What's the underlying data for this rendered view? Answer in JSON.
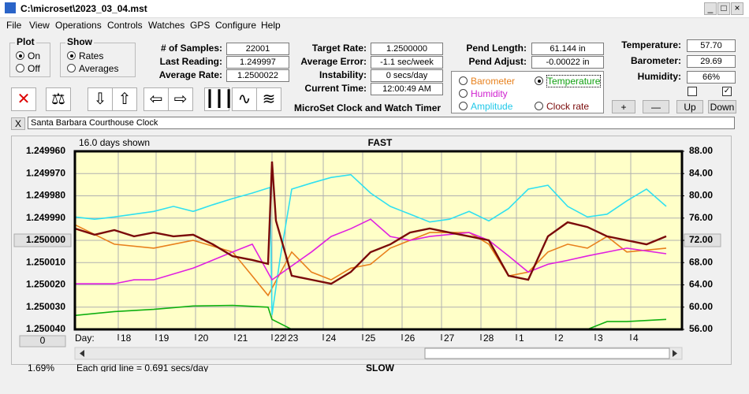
{
  "window": {
    "title": "C:\\microset\\2023_03_04.mst",
    "menu": [
      "File",
      "View",
      "Operations",
      "Controls",
      "Watches",
      "GPS",
      "Configure",
      "Help"
    ]
  },
  "controls": {
    "plot": {
      "label": "Plot",
      "options": [
        "On",
        "Off"
      ]
    },
    "show": {
      "label": "Show",
      "options": [
        "Rates",
        "Averages"
      ]
    },
    "fields": [
      {
        "label": "# of Samples:",
        "value": "22001"
      },
      {
        "label": "Last Reading:",
        "value": "1.249997"
      },
      {
        "label": "Average Rate:",
        "value": "1.2500022"
      },
      {
        "label": "Target Rate:",
        "value": "1.2500000"
      },
      {
        "label": "Average Error:",
        "value": "-1.1 sec/week"
      },
      {
        "label": "Instability:",
        "value": "0 secs/day"
      },
      {
        "label": "Current Time:",
        "value": "12:00:49 AM"
      },
      {
        "label": "Pend Length:",
        "value": "61.144 in"
      },
      {
        "label": "Pend Adjust:",
        "value": "-0.00022 in"
      },
      {
        "label": "Temperature:",
        "value": "57.70"
      },
      {
        "label": "Barometer:",
        "value": "29.69"
      },
      {
        "label": "Humidity:",
        "value": "66%"
      }
    ],
    "app_name": "MicroSet Clock and Watch Timer",
    "buttons": [
      "+",
      "—",
      "Up",
      "Down"
    ],
    "close_label": "X",
    "clock_name": "Santa Barbara Courthouse Clock"
  },
  "chart_data": {
    "type": "line",
    "title": "FAST",
    "subtitle": "SLOW",
    "annotations": [
      "16.0 days shown",
      "Day:",
      "Each grid line = 0.691 secs/day",
      "1.69%",
      "0"
    ],
    "xlim": [
      0,
      15.4
    ],
    "xticks": [
      {
        "value": 1.1,
        "label": "18"
      },
      {
        "value": 2.06,
        "label": "19"
      },
      {
        "value": 3.06,
        "label": "20"
      },
      {
        "value": 4.06,
        "label": "21"
      },
      {
        "value": 5.0,
        "label": "22"
      },
      {
        "value": 5.34,
        "label": "23"
      },
      {
        "value": 6.3,
        "label": "24"
      },
      {
        "value": 7.3,
        "label": "25"
      },
      {
        "value": 8.3,
        "label": "26"
      },
      {
        "value": 9.3,
        "label": "27"
      },
      {
        "value": 10.3,
        "label": "28"
      },
      {
        "value": 11.2,
        "label": "1"
      },
      {
        "value": 12.2,
        "label": "2"
      },
      {
        "value": 13.2,
        "label": "3"
      },
      {
        "value": 14.1,
        "label": "4"
      }
    ],
    "ylim": [
      1.25004,
      1.24996
    ],
    "yticks": [
      {
        "value": 1.24996,
        "label": "1.249960"
      },
      {
        "value": 1.24997,
        "label": "1.249970"
      },
      {
        "value": 1.24998,
        "label": "1.249980"
      },
      {
        "value": 1.24999,
        "label": "1.249990"
      },
      {
        "value": 1.25,
        "label": "1.250000"
      },
      {
        "value": 1.25001,
        "label": "1.250010"
      },
      {
        "value": 1.25002,
        "label": "1.250020"
      },
      {
        "value": 1.25003,
        "label": "1.250030"
      },
      {
        "value": 1.25004,
        "label": "1.250040"
      }
    ],
    "y2lim": [
      56,
      88
    ],
    "y2ticks": [
      {
        "value": 88,
        "label": "88.00"
      },
      {
        "value": 84,
        "label": "84.00"
      },
      {
        "value": 80,
        "label": "80.00"
      },
      {
        "value": 76,
        "label": "76.00"
      },
      {
        "value": 72,
        "label": "72.00"
      },
      {
        "value": 68,
        "label": "68.00"
      },
      {
        "value": 64,
        "label": "64.00"
      },
      {
        "value": 60,
        "label": "60.00"
      },
      {
        "value": 56,
        "label": "56.00"
      }
    ],
    "grid": true,
    "series": [
      {
        "name": "Barometer",
        "color": "#e8801c",
        "axis": "y2",
        "x": [
          0,
          1,
          2,
          3,
          4,
          4.5,
          4.9,
          5.5,
          6,
          6.5,
          7,
          7.5,
          8,
          9,
          10,
          10.5,
          11,
          11.5,
          12,
          12.5,
          13,
          13.5,
          14,
          15
        ],
        "values": [
          74.8,
          71.3,
          70.6,
          72,
          69.9,
          65.6,
          62.1,
          69.9,
          66.3,
          64.9,
          67,
          67.7,
          70.6,
          73.4,
          73.4,
          71.3,
          65.6,
          66.3,
          69.9,
          71.3,
          70.6,
          72.7,
          69.9,
          70.6
        ]
      },
      {
        "name": "Temperature",
        "color": "#30e0f0",
        "axis": "y2",
        "x": [
          0,
          0.5,
          1,
          1.5,
          2,
          2.5,
          3,
          3.5,
          4,
          4.5,
          4.95,
          5.0,
          5.2,
          5.5,
          6,
          6.5,
          7,
          7.5,
          8,
          8.5,
          9,
          9.5,
          10,
          10.5,
          11,
          11.5,
          12,
          12.5,
          13,
          13.5,
          14,
          14.5,
          15
        ],
        "values": [
          76.2,
          75.8,
          76.2,
          76.7,
          77.2,
          78.1,
          77.2,
          78.4,
          79.5,
          80.5,
          81.5,
          58.6,
          68.5,
          81.2,
          82.3,
          83.3,
          83.8,
          80.5,
          78.1,
          76.7,
          75.3,
          75.8,
          77.2,
          75.5,
          77.7,
          81.2,
          81.9,
          78.1,
          76.2,
          76.7,
          79.1,
          81.2,
          78.1
        ]
      },
      {
        "name": "Humidity",
        "color": "#e020e0",
        "axis": "y2",
        "x": [
          0,
          1,
          1.5,
          2,
          3,
          4,
          4.5,
          5,
          6,
          6.5,
          7,
          7.5,
          8,
          8.5,
          9,
          10,
          10.5,
          11,
          11.5,
          12,
          12.5,
          13,
          14,
          15
        ],
        "values": [
          64.2,
          64.2,
          64.9,
          64.9,
          67,
          69.9,
          71.3,
          64.9,
          69.9,
          72.7,
          74.1,
          75.8,
          72.7,
          72,
          72.7,
          73.4,
          72,
          69.2,
          66.3,
          67.7,
          68.4,
          69.2,
          70.6,
          69.6
        ]
      },
      {
        "name": "Amplitude",
        "color": "#10b010",
        "axis": "y2",
        "x": [
          0,
          1,
          2,
          3,
          4,
          4.9,
          5,
          5.5,
          10,
          13,
          13.5,
          14,
          15
        ],
        "values": [
          58.5,
          59.2,
          59.6,
          60.2,
          60.3,
          60,
          57.8,
          56,
          56,
          56,
          57.4,
          57.4,
          57.8
        ]
      },
      {
        "name": "Clock rate",
        "color": "#7a0a0a",
        "x": [
          0,
          0.5,
          1,
          1.5,
          2,
          2.5,
          3,
          3.5,
          4,
          4.5,
          4.9,
          5.0,
          5.1,
          5.5,
          6,
          6.5,
          7,
          7.5,
          8,
          8.5,
          9,
          9.5,
          10,
          10.5,
          11,
          11.5,
          12,
          12.5,
          13,
          13.5,
          14,
          14.5,
          15
        ],
        "values": [
          1.2499947,
          1.2499975,
          1.2499954,
          1.2499982,
          1.2499965,
          1.2499982,
          1.2499975,
          1.2500018,
          1.2500071,
          1.2500088,
          1.2500106,
          1.2499646,
          1.2499912,
          1.2500159,
          1.2500177,
          1.2500195,
          1.2500142,
          1.2500053,
          1.2500018,
          1.2499965,
          1.2499947,
          1.2499965,
          1.2499982,
          1.25,
          1.2500159,
          1.2500177,
          1.2499982,
          1.2499919,
          1.249994,
          1.2499982,
          1.25,
          1.2500018,
          1.2499982
        ]
      }
    ]
  }
}
